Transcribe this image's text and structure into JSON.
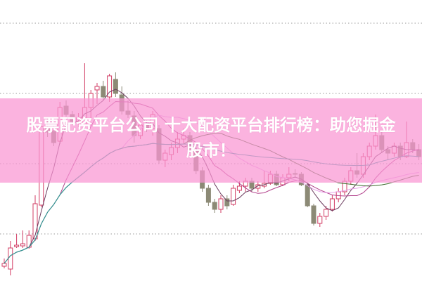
{
  "chart_data": {
    "type": "candlestick",
    "title": "股票配资平台公司 十大配资平台排行榜：助您掘金股市！",
    "xlabel": "",
    "ylabel": "",
    "ylim": [
      3.3,
      43.3
    ],
    "grid": true,
    "gridlines": [
      10,
      20,
      30,
      40
    ],
    "colors": {
      "up": "#d23c64",
      "down": "#8c8a76",
      "grid": "#9a9a9a",
      "banner": "#f996d2"
    },
    "moving_averages": [
      {
        "window": 5,
        "color": "#6b3b5e"
      },
      {
        "window": 10,
        "color": "#b2418c"
      },
      {
        "window": 20,
        "color": "#e7a0e8"
      },
      {
        "window": 30,
        "color": "#3d6b2c"
      },
      {
        "window": 60,
        "color": "#2a9a9c"
      }
    ],
    "ohlc": [
      [
        5.4,
        6.5,
        5.1,
        5.8
      ],
      [
        5.0,
        9.0,
        4.1,
        8.0
      ],
      [
        8.2,
        10.0,
        8.0,
        8.4
      ],
      [
        8.3,
        10.5,
        8.0,
        8.6
      ],
      [
        8.1,
        10.5,
        7.9,
        9.8
      ],
      [
        9.3,
        15.5,
        9.0,
        14.3
      ],
      [
        14.1,
        25.3,
        13.8,
        25.3
      ],
      [
        25.0,
        26.5,
        23.8,
        24.5
      ],
      [
        24.6,
        25.5,
        22.5,
        23.0
      ],
      [
        23.2,
        28.8,
        22.8,
        28.0
      ],
      [
        28.2,
        29.0,
        26.5,
        27.0
      ],
      [
        27.0,
        27.5,
        25.5,
        26.0
      ],
      [
        26.0,
        27.2,
        25.2,
        26.5
      ],
      [
        25.5,
        34.3,
        25.0,
        28.0
      ],
      [
        28.0,
        30.5,
        26.5,
        30.0
      ],
      [
        30.5,
        31.5,
        28.5,
        31.0
      ],
      [
        31.0,
        31.8,
        29.0,
        29.5
      ],
      [
        29.5,
        32.8,
        28.8,
        32.5
      ],
      [
        32.0,
        33.0,
        29.5,
        30.0
      ],
      [
        29.8,
        31.0,
        27.0,
        27.5
      ],
      [
        27.5,
        29.0,
        26.5,
        27.0
      ],
      [
        26.8,
        27.5,
        23.0,
        24.0
      ],
      [
        24.0,
        26.0,
        23.5,
        25.5
      ],
      [
        25.5,
        26.2,
        24.5,
        25.0
      ],
      [
        25.0,
        27.5,
        24.0,
        27.0
      ],
      [
        25.0,
        25.5,
        20.0,
        20.5
      ],
      [
        20.5,
        22.0,
        19.5,
        21.5
      ],
      [
        21.3,
        23.0,
        20.5,
        22.3
      ],
      [
        22.3,
        24.5,
        21.5,
        23.5
      ],
      [
        23.5,
        25.0,
        22.8,
        24.0
      ],
      [
        24.0,
        24.5,
        21.5,
        22.0
      ],
      [
        22.0,
        22.5,
        18.5,
        19.0
      ],
      [
        19.0,
        19.5,
        16.0,
        16.5
      ],
      [
        16.5,
        17.0,
        14.0,
        14.5
      ],
      [
        14.5,
        15.0,
        13.0,
        13.5
      ],
      [
        13.5,
        15.5,
        13.0,
        15.0
      ],
      [
        15.0,
        15.5,
        13.5,
        14.0
      ],
      [
        14.2,
        17.0,
        14.0,
        16.5
      ],
      [
        16.2,
        17.5,
        15.8,
        16.8
      ],
      [
        16.8,
        18.0,
        16.0,
        17.5
      ],
      [
        17.5,
        18.0,
        16.0,
        16.5
      ],
      [
        16.5,
        17.5,
        16.0,
        17.0
      ],
      [
        16.8,
        19.0,
        16.5,
        17.2
      ],
      [
        17.2,
        19.0,
        17.0,
        18.5
      ],
      [
        18.5,
        19.0,
        16.8,
        17.0
      ],
      [
        17.0,
        18.5,
        16.8,
        18.0
      ],
      [
        18.0,
        19.5,
        17.5,
        18.5
      ],
      [
        18.6,
        19.2,
        18.0,
        18.5
      ],
      [
        18.5,
        18.8,
        16.8,
        17.0
      ],
      [
        17.0,
        17.2,
        13.8,
        14.0
      ],
      [
        14.0,
        14.3,
        11.2,
        11.5
      ],
      [
        11.5,
        13.0,
        11.0,
        12.5
      ],
      [
        12.5,
        14.0,
        12.0,
        13.5
      ],
      [
        13.5,
        15.5,
        13.2,
        15.0
      ],
      [
        15.0,
        16.5,
        14.5,
        16.0
      ],
      [
        16.0,
        18.0,
        15.5,
        17.5
      ],
      [
        17.5,
        19.5,
        17.0,
        19.0
      ],
      [
        19.0,
        21.5,
        18.0,
        18.5
      ],
      [
        18.5,
        21.5,
        18.0,
        21.0
      ],
      [
        21.0,
        23.0,
        20.5,
        22.5
      ],
      [
        22.5,
        27.0,
        22.0,
        24.0
      ],
      [
        24.0,
        24.5,
        21.5,
        22.0
      ],
      [
        22.0,
        22.5,
        20.5,
        21.5
      ],
      [
        21.5,
        23.0,
        21.0,
        22.5
      ],
      [
        22.5,
        23.0,
        20.5,
        21.0
      ],
      [
        21.0,
        26.0,
        20.8,
        23.0
      ],
      [
        23.0,
        23.5,
        21.5,
        22.0
      ],
      [
        22.0,
        22.8,
        20.5,
        21.0
      ]
    ]
  },
  "banner": {
    "line1": "股票配资平台公司 十大配资平台排行榜：助您掘金",
    "line2": "股市！"
  }
}
